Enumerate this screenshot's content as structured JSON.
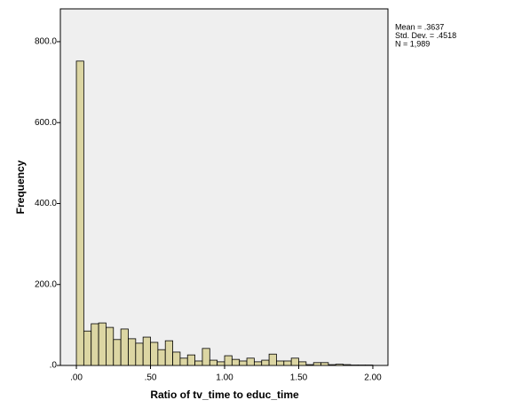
{
  "chart_data": {
    "type": "histogram",
    "x_label": "Ratio of tv_time to educ_time",
    "y_label": "Frequency",
    "stats": [
      "Mean = .3637",
      "Std. Dev. = .4518",
      "N = 1,989"
    ],
    "bins": [
      0,
      0.05,
      0.1,
      0.15,
      0.2,
      0.25,
      0.3,
      0.35,
      0.4,
      0.45,
      0.5,
      0.55,
      0.6,
      0.65,
      0.7,
      0.75,
      0.8,
      0.85,
      0.9,
      0.95,
      1.0,
      1.05,
      1.1,
      1.15,
      1.2,
      1.25,
      1.3,
      1.35,
      1.4,
      1.45,
      1.5,
      1.55,
      1.6,
      1.65,
      1.7,
      1.75,
      1.8,
      1.85,
      1.9,
      1.95,
      2.0
    ],
    "values": [
      752,
      85,
      103,
      105,
      94,
      64,
      90,
      66,
      55,
      70,
      57,
      39,
      61,
      33,
      18,
      26,
      11,
      42,
      13,
      9,
      24,
      15,
      11,
      18,
      9,
      13,
      28,
      11,
      11,
      18,
      9,
      2,
      7,
      7,
      2,
      3,
      2,
      1,
      1,
      1
    ],
    "color": "#dcd6a3",
    "plot_background": "#efefef",
    "xlim": [
      -0.108,
      2.102
    ],
    "ylim": [
      0,
      881
    ],
    "xticks": [
      {
        "value": 0,
        "label": ".00"
      },
      {
        "value": 0.5,
        "label": ".50"
      },
      {
        "value": 1.0,
        "label": "1.00"
      },
      {
        "value": 1.5,
        "label": "1.50"
      },
      {
        "value": 2.0,
        "label": "2.00"
      }
    ],
    "yticks": [
      {
        "value": 0,
        "label": ".0"
      },
      {
        "value": 200,
        "label": "200.0"
      },
      {
        "value": 400,
        "label": "400.0"
      },
      {
        "value": 600,
        "label": "600.0"
      },
      {
        "value": 800,
        "label": "800.0"
      }
    ]
  }
}
